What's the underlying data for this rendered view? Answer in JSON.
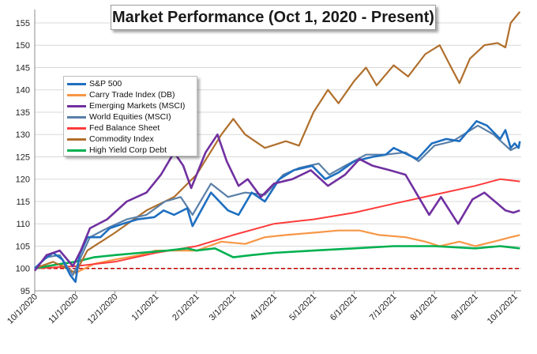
{
  "chart_data": {
    "type": "line",
    "title": "Market Performance (Oct 1, 2020 - Present)",
    "ylim": [
      95,
      158
    ],
    "yticks": [
      "95",
      "100",
      "105",
      "110",
      "115",
      "120",
      "125",
      "130",
      "135",
      "140",
      "145",
      "150",
      "155"
    ],
    "xlim": [
      "2020-10-01",
      "2021-10-06"
    ],
    "xtick_labels": [
      "10/1/2020",
      "11/1/2020",
      "12/1/2020",
      "1/1/2021",
      "2/1/2021",
      "3/1/2021",
      "4/1/2021",
      "5/1/2021",
      "6/1/2021",
      "7/1/2021",
      "8/1/2021",
      "9/1/2021",
      "10/1/2021"
    ],
    "xtick_dates": [
      "2020-10-01",
      "2020-11-01",
      "2020-12-01",
      "2021-01-01",
      "2021-02-01",
      "2021-03-01",
      "2021-04-01",
      "2021-05-01",
      "2021-06-01",
      "2021-07-01",
      "2021-08-01",
      "2021-09-01",
      "2021-10-01"
    ],
    "grid": {
      "horizontal": true,
      "vertical": false
    },
    "legend_position": "top-left",
    "reference_line": {
      "y": 100,
      "color": "#c00000",
      "style": "dashed"
    },
    "series": [
      {
        "name": "S&P 500",
        "color": "#1f6fc0",
        "width": 2.6,
        "points": [
          [
            "2020-10-01",
            100
          ],
          [
            "2020-10-08",
            102
          ],
          [
            "2020-10-15",
            103.5
          ],
          [
            "2020-10-22",
            102
          ],
          [
            "2020-10-28",
            98.5
          ],
          [
            "2020-11-01",
            97
          ],
          [
            "2020-11-04",
            103
          ],
          [
            "2020-11-10",
            107
          ],
          [
            "2020-11-20",
            107
          ],
          [
            "2020-11-27",
            109
          ],
          [
            "2020-12-07",
            110
          ],
          [
            "2020-12-18",
            111
          ],
          [
            "2020-12-31",
            111.5
          ],
          [
            "2021-01-07",
            113
          ],
          [
            "2021-01-15",
            112
          ],
          [
            "2021-01-25",
            113.5
          ],
          [
            "2021-01-29",
            109.5
          ],
          [
            "2021-02-12",
            117
          ],
          [
            "2021-02-25",
            113
          ],
          [
            "2021-03-05",
            112
          ],
          [
            "2021-03-15",
            117
          ],
          [
            "2021-03-25",
            115
          ],
          [
            "2021-04-05",
            120
          ],
          [
            "2021-04-16",
            122
          ],
          [
            "2021-04-30",
            123
          ],
          [
            "2021-05-10",
            120
          ],
          [
            "2021-05-20",
            121.5
          ],
          [
            "2021-06-01",
            124
          ],
          [
            "2021-06-15",
            125
          ],
          [
            "2021-06-25",
            125.5
          ],
          [
            "2021-07-01",
            127
          ],
          [
            "2021-07-19",
            124.5
          ],
          [
            "2021-07-30",
            128
          ],
          [
            "2021-08-10",
            129
          ],
          [
            "2021-08-20",
            128.5
          ],
          [
            "2021-09-02",
            133
          ],
          [
            "2021-09-10",
            132
          ],
          [
            "2021-09-20",
            129
          ],
          [
            "2021-09-24",
            131
          ],
          [
            "2021-09-28",
            127
          ],
          [
            "2021-10-01",
            128
          ],
          [
            "2021-10-04",
            127
          ],
          [
            "2021-10-05",
            128.5
          ]
        ]
      },
      {
        "name": "Carry Trade Index (DB)",
        "color": "#f79646",
        "width": 2.2,
        "points": [
          [
            "2020-10-01",
            100
          ],
          [
            "2020-10-20",
            101
          ],
          [
            "2020-11-01",
            99
          ],
          [
            "2020-11-15",
            101
          ],
          [
            "2020-12-01",
            102
          ],
          [
            "2020-12-20",
            103
          ],
          [
            "2021-01-01",
            104
          ],
          [
            "2021-01-15",
            104
          ],
          [
            "2021-02-01",
            104
          ],
          [
            "2021-02-20",
            106
          ],
          [
            "2021-03-10",
            105.5
          ],
          [
            "2021-03-25",
            107
          ],
          [
            "2021-04-10",
            107.5
          ],
          [
            "2021-05-01",
            108
          ],
          [
            "2021-05-20",
            108.5
          ],
          [
            "2021-06-05",
            108.5
          ],
          [
            "2021-06-20",
            107.5
          ],
          [
            "2021-07-10",
            107
          ],
          [
            "2021-07-25",
            106
          ],
          [
            "2021-08-05",
            105
          ],
          [
            "2021-08-20",
            106
          ],
          [
            "2021-09-01",
            105
          ],
          [
            "2021-09-15",
            106
          ],
          [
            "2021-09-28",
            107
          ],
          [
            "2021-10-05",
            107.5
          ]
        ]
      },
      {
        "name": "Emerging Markets (MSCI)",
        "color": "#7030a0",
        "width": 2.6,
        "points": [
          [
            "2020-10-01",
            99.5
          ],
          [
            "2020-10-10",
            103
          ],
          [
            "2020-10-20",
            104
          ],
          [
            "2020-10-30",
            100.5
          ],
          [
            "2020-11-05",
            104
          ],
          [
            "2020-11-12",
            109
          ],
          [
            "2020-11-25",
            111
          ],
          [
            "2020-12-10",
            115
          ],
          [
            "2020-12-25",
            117
          ],
          [
            "2021-01-05",
            121
          ],
          [
            "2021-01-15",
            126
          ],
          [
            "2021-01-22",
            123
          ],
          [
            "2021-01-28",
            118
          ],
          [
            "2021-02-08",
            126
          ],
          [
            "2021-02-17",
            130
          ],
          [
            "2021-02-24",
            124
          ],
          [
            "2021-03-05",
            118.5
          ],
          [
            "2021-03-12",
            120
          ],
          [
            "2021-03-22",
            116
          ],
          [
            "2021-04-01",
            119
          ],
          [
            "2021-04-15",
            120
          ],
          [
            "2021-04-29",
            122
          ],
          [
            "2021-05-12",
            118.5
          ],
          [
            "2021-05-25",
            121
          ],
          [
            "2021-06-05",
            124.5
          ],
          [
            "2021-06-15",
            123
          ],
          [
            "2021-06-28",
            122
          ],
          [
            "2021-07-10",
            121
          ],
          [
            "2021-07-20",
            116
          ],
          [
            "2021-07-28",
            112
          ],
          [
            "2021-08-06",
            116
          ],
          [
            "2021-08-19",
            110
          ],
          [
            "2021-08-30",
            115.5
          ],
          [
            "2021-09-08",
            117
          ],
          [
            "2021-09-18",
            114.5
          ],
          [
            "2021-09-24",
            113
          ],
          [
            "2021-09-30",
            112.5
          ],
          [
            "2021-10-05",
            113
          ]
        ]
      },
      {
        "name": "World Equities (MSCI)",
        "color": "#5a7fa8",
        "width": 2.2,
        "points": [
          [
            "2020-10-01",
            100
          ],
          [
            "2020-10-10",
            102.5
          ],
          [
            "2020-10-20",
            103
          ],
          [
            "2020-10-30",
            98.5
          ],
          [
            "2020-11-05",
            102.5
          ],
          [
            "2020-11-12",
            107
          ],
          [
            "2020-11-25",
            109
          ],
          [
            "2020-12-10",
            111
          ],
          [
            "2020-12-25",
            112
          ],
          [
            "2021-01-08",
            115
          ],
          [
            "2021-01-20",
            116
          ],
          [
            "2021-01-29",
            112
          ],
          [
            "2021-02-12",
            119
          ],
          [
            "2021-02-25",
            116
          ],
          [
            "2021-03-10",
            117
          ],
          [
            "2021-03-25",
            116.5
          ],
          [
            "2021-04-08",
            121
          ],
          [
            "2021-04-20",
            122.5
          ],
          [
            "2021-05-05",
            123.5
          ],
          [
            "2021-05-13",
            121
          ],
          [
            "2021-05-25",
            123
          ],
          [
            "2021-06-10",
            125.5
          ],
          [
            "2021-06-25",
            125.5
          ],
          [
            "2021-07-10",
            126
          ],
          [
            "2021-07-20",
            124
          ],
          [
            "2021-08-01",
            127.5
          ],
          [
            "2021-08-15",
            128.5
          ],
          [
            "2021-09-03",
            132
          ],
          [
            "2021-09-15",
            130
          ],
          [
            "2021-09-28",
            126.5
          ],
          [
            "2021-10-05",
            127.5
          ]
        ]
      },
      {
        "name": "Fed Balance Sheet",
        "color": "#ff3b3b",
        "width": 2.0,
        "points": [
          [
            "2020-10-01",
            100
          ],
          [
            "2020-11-01",
            100.5
          ],
          [
            "2020-12-01",
            101.5
          ],
          [
            "2021-01-01",
            103.5
          ],
          [
            "2021-02-01",
            105
          ],
          [
            "2021-03-01",
            107.5
          ],
          [
            "2021-04-01",
            110
          ],
          [
            "2021-05-01",
            111
          ],
          [
            "2021-06-01",
            112.5
          ],
          [
            "2021-07-01",
            114.5
          ],
          [
            "2021-08-01",
            116.5
          ],
          [
            "2021-09-01",
            118.5
          ],
          [
            "2021-09-20",
            120
          ],
          [
            "2021-10-05",
            119.5
          ]
        ]
      },
      {
        "name": "Commodity Index",
        "color": "#b06f2c",
        "width": 2.2,
        "points": [
          [
            "2020-10-01",
            100
          ],
          [
            "2020-10-15",
            101.5
          ],
          [
            "2020-11-01",
            99
          ],
          [
            "2020-11-10",
            104
          ],
          [
            "2020-12-01",
            108
          ],
          [
            "2020-12-25",
            113
          ],
          [
            "2021-01-15",
            116
          ],
          [
            "2021-02-01",
            121
          ],
          [
            "2021-02-20",
            130
          ],
          [
            "2021-03-01",
            133.5
          ],
          [
            "2021-03-10",
            130
          ],
          [
            "2021-03-25",
            127
          ],
          [
            "2021-04-10",
            128.5
          ],
          [
            "2021-04-20",
            127.5
          ],
          [
            "2021-05-01",
            135
          ],
          [
            "2021-05-12",
            140
          ],
          [
            "2021-05-20",
            137
          ],
          [
            "2021-06-01",
            142
          ],
          [
            "2021-06-10",
            145
          ],
          [
            "2021-06-18",
            141
          ],
          [
            "2021-07-01",
            145.5
          ],
          [
            "2021-07-12",
            143
          ],
          [
            "2021-07-25",
            148
          ],
          [
            "2021-08-05",
            150
          ],
          [
            "2021-08-12",
            146
          ],
          [
            "2021-08-20",
            141.5
          ],
          [
            "2021-08-28",
            147
          ],
          [
            "2021-09-08",
            150
          ],
          [
            "2021-09-18",
            150.5
          ],
          [
            "2021-09-24",
            149.5
          ],
          [
            "2021-09-28",
            155
          ],
          [
            "2021-10-05",
            157.5
          ]
        ]
      },
      {
        "name": "High Yield Corp Debt",
        "color": "#00b050",
        "width": 2.6,
        "points": [
          [
            "2020-10-01",
            100
          ],
          [
            "2020-10-20",
            101
          ],
          [
            "2020-11-01",
            101.5
          ],
          [
            "2020-11-15",
            102.5
          ],
          [
            "2020-12-01",
            103
          ],
          [
            "2020-12-20",
            103.5
          ],
          [
            "2021-01-10",
            104
          ],
          [
            "2021-01-25",
            104.5
          ],
          [
            "2021-02-01",
            104
          ],
          [
            "2021-02-15",
            104.5
          ],
          [
            "2021-03-01",
            102.5
          ],
          [
            "2021-03-15",
            103
          ],
          [
            "2021-04-01",
            103.5
          ],
          [
            "2021-05-01",
            104
          ],
          [
            "2021-06-01",
            104.5
          ],
          [
            "2021-07-01",
            105
          ],
          [
            "2021-08-01",
            105
          ],
          [
            "2021-09-01",
            104.5
          ],
          [
            "2021-09-20",
            105
          ],
          [
            "2021-10-05",
            104.5
          ]
        ]
      }
    ]
  }
}
